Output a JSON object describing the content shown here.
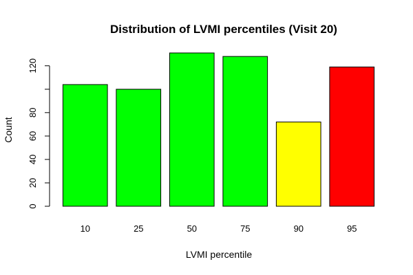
{
  "chart_data": {
    "type": "bar",
    "title": "Distribution of LVMI percentiles (Visit 20)",
    "xlabel": "LVMI percentile",
    "ylabel": "Count",
    "categories": [
      "10",
      "25",
      "50",
      "75",
      "90",
      "95"
    ],
    "values": [
      104,
      100,
      131,
      128,
      72,
      119
    ],
    "colors": [
      "#00ff00",
      "#00ff00",
      "#00ff00",
      "#00ff00",
      "#ffff00",
      "#ff0000"
    ],
    "ylim": [
      0,
      131
    ],
    "yticks": [
      0,
      20,
      40,
      60,
      80,
      100,
      120
    ],
    "ytick_labels": [
      "0",
      "20",
      "40",
      "60",
      "80",
      "",
      "120"
    ],
    "grid": false,
    "legend": "none"
  }
}
